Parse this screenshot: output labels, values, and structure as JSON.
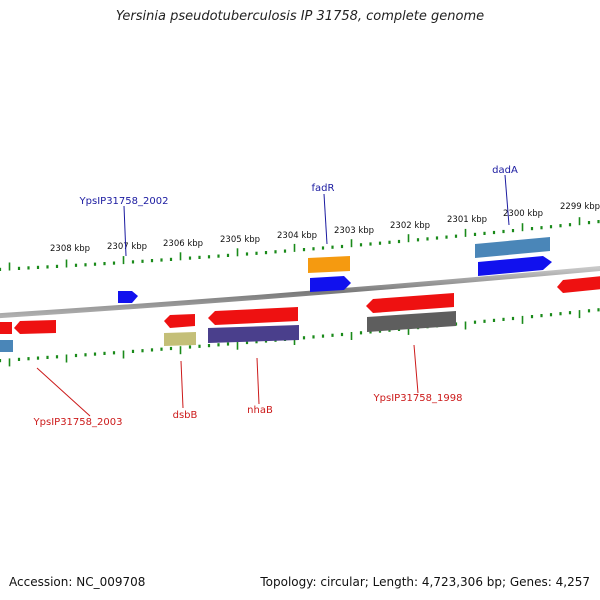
{
  "title": "Yersinia pseudotuberculosis IP 31758, complete genome",
  "footer": {
    "accession": "Accession: NC_009708",
    "topology": "Topology: circular; Length: 4,723,306 bp; Genes: 4,257"
  },
  "colors": {
    "backbone": "#8a8a8a",
    "tick": "#1a8a1a",
    "label_forward": "#1a1aa0",
    "label_reverse": "#cc1a1a",
    "gene_red": "#ee1111",
    "gene_blue": "#1111ee",
    "gene_steel": "#4a86b8",
    "gene_orange": "#f59a10",
    "gene_khaki": "#c4bf78",
    "gene_purple": "#4a3f8c",
    "gene_gray": "#5e5e5e"
  },
  "kbp_labels": [
    "2308 kbp",
    "2307 kbp",
    "2306 kbp",
    "2305 kbp",
    "2304 kbp",
    "2303 kbp",
    "2302 kbp",
    "2301 kbp",
    "2300 kbp",
    "2299 kbp"
  ],
  "gene_labels": {
    "YpsIP31758_2002": "YpsIP31758_2002",
    "fadR": "fadR",
    "dadA": "dadA",
    "YpsIP31758_2003": "YpsIP31758_2003",
    "dsbB": "dsbB",
    "nhaB": "nhaB",
    "YpsIP31758_1998": "YpsIP31758_1998"
  }
}
